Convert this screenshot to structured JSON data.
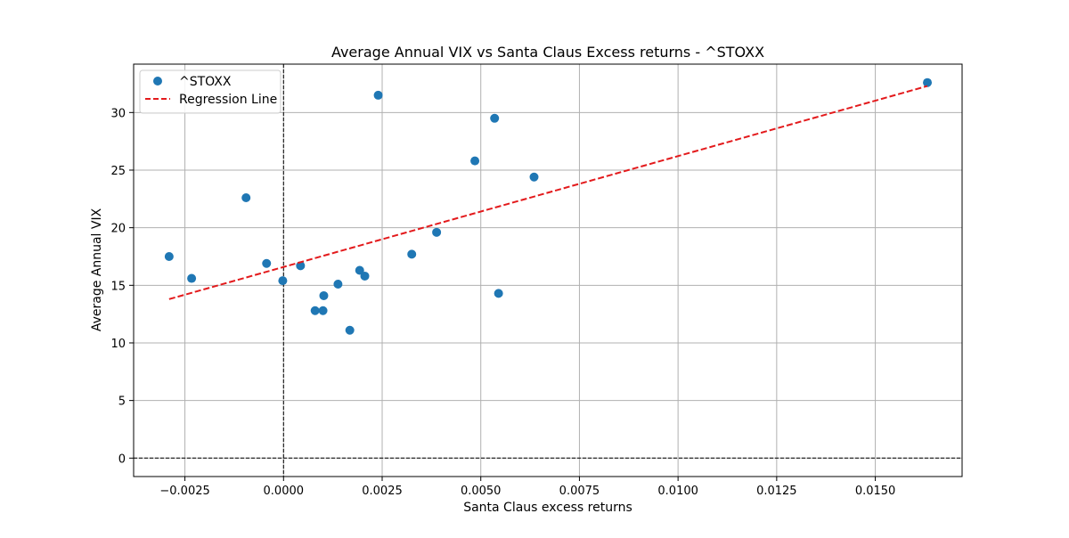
{
  "chart_data": {
    "type": "scatter",
    "title": "Average Annual VIX vs Santa Claus Excess returns - ^STOXX",
    "xlabel": "Santa Claus excess returns",
    "ylabel": "Average Annual VIX",
    "xlim": [
      -0.0038,
      0.0172
    ],
    "ylim": [
      -1.6,
      34.2
    ],
    "x_ticks": [
      -0.0025,
      0.0,
      0.0025,
      0.005,
      0.0075,
      0.01,
      0.0125,
      0.015
    ],
    "x_tick_labels": [
      "−0.0025",
      "0.0000",
      "0.0025",
      "0.0050",
      "0.0075",
      "0.0100",
      "0.0125",
      "0.0150"
    ],
    "y_ticks": [
      0,
      5,
      10,
      15,
      20,
      25,
      30
    ],
    "y_tick_labels": [
      "0",
      "5",
      "10",
      "15",
      "20",
      "25",
      "30"
    ],
    "grid": true,
    "legend_position": "top-left",
    "reference_lines": {
      "x": 0,
      "y": 0,
      "style": "dashed",
      "color": "#000000"
    },
    "series": [
      {
        "name": "^STOXX",
        "kind": "scatter",
        "color": "#1f77b4",
        "points": [
          {
            "x": -0.0029,
            "y": 17.5
          },
          {
            "x": -0.00233,
            "y": 15.6
          },
          {
            "x": -0.00095,
            "y": 22.6
          },
          {
            "x": -0.00043,
            "y": 16.9
          },
          {
            "x": -2e-05,
            "y": 15.4
          },
          {
            "x": 0.00043,
            "y": 16.7
          },
          {
            "x": 0.0008,
            "y": 12.8
          },
          {
            "x": 0.001,
            "y": 12.8
          },
          {
            "x": 0.00102,
            "y": 14.1
          },
          {
            "x": 0.00138,
            "y": 15.1
          },
          {
            "x": 0.00168,
            "y": 11.1
          },
          {
            "x": 0.00193,
            "y": 16.3
          },
          {
            "x": 0.00206,
            "y": 15.8
          },
          {
            "x": 0.0024,
            "y": 31.5
          },
          {
            "x": 0.00325,
            "y": 17.7
          },
          {
            "x": 0.00388,
            "y": 19.6
          },
          {
            "x": 0.00485,
            "y": 25.8
          },
          {
            "x": 0.00535,
            "y": 29.5
          },
          {
            "x": 0.00545,
            "y": 14.3
          },
          {
            "x": 0.00635,
            "y": 24.4
          },
          {
            "x": 0.01632,
            "y": 32.6
          }
        ]
      },
      {
        "name": "Regression Line",
        "kind": "line",
        "color": "#e31a1c",
        "style": "dashed",
        "points": [
          {
            "x": -0.0029,
            "y": 13.8
          },
          {
            "x": 0.01632,
            "y": 32.3
          }
        ]
      }
    ]
  }
}
